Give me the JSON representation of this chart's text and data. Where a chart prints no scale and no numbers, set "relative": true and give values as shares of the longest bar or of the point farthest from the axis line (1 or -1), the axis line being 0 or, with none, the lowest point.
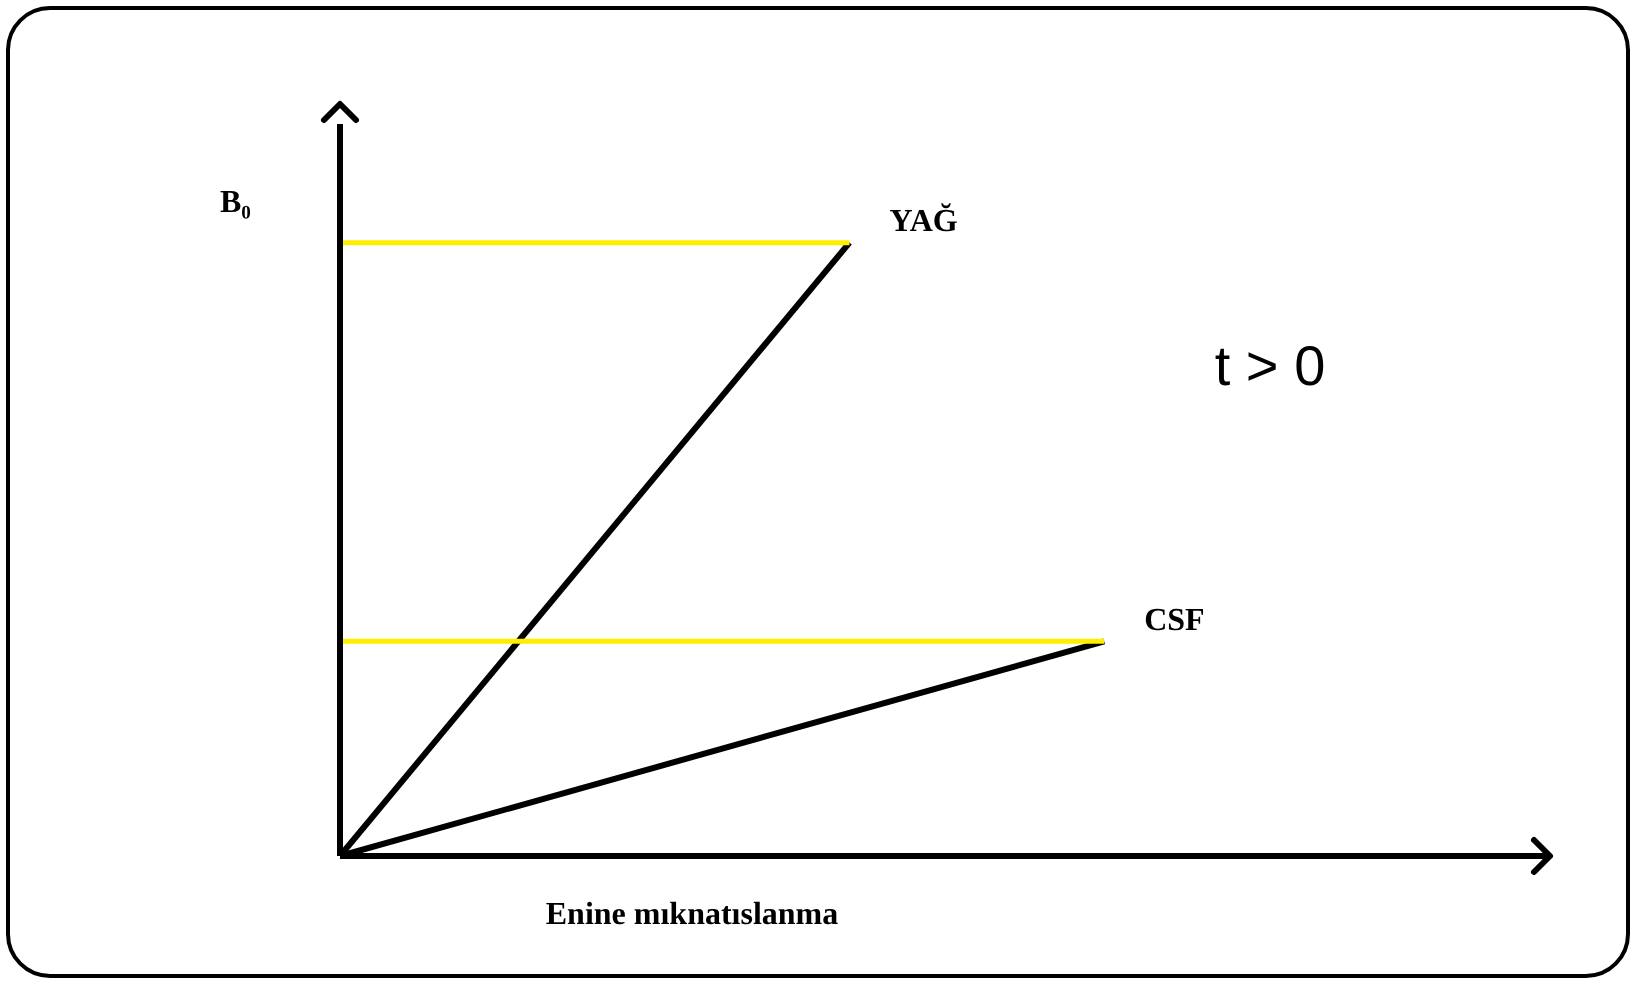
{
  "chart_data": {
    "type": "line",
    "relative": true,
    "xlabel": "Enine mıknatıslanma",
    "ylabel": "B₀",
    "annotations": [
      "t > 0"
    ],
    "legend": false,
    "marker": "none",
    "line_style": "solid",
    "categories": [
      null,
      null,
      null,
      null,
      null,
      null,
      null,
      null,
      null,
      null,
      null,
      null,
      null,
      null,
      null,
      null,
      null,
      null,
      null,
      null
    ],
    "series": [
      {
        "name": "YAĞ",
        "color": "#000000",
        "values": [
          0,
          null,
          null,
          null,
          null,
          null,
          null,
          null,
          1,
          null,
          null,
          null,
          null,
          null,
          null,
          null,
          null,
          null,
          null,
          null
        ]
      },
      {
        "name": "CSF",
        "color": "#000000",
        "values": [
          0,
          null,
          null,
          null,
          null,
          null,
          null,
          null,
          null,
          null,
          null,
          null,
          0.35,
          null,
          null,
          null,
          null,
          null,
          null,
          null
        ]
      },
      {
        "color": "#ffee00",
        "values": [
          1,
          null,
          null,
          null,
          null,
          null,
          null,
          null,
          1,
          null,
          null,
          null,
          null,
          null,
          null,
          null,
          null,
          null,
          null,
          null
        ]
      },
      {
        "color": "#ffee00",
        "values": [
          0.35,
          null,
          null,
          null,
          null,
          null,
          null,
          null,
          null,
          null,
          null,
          null,
          0.35,
          null,
          null,
          null,
          null,
          null,
          null,
          null
        ]
      }
    ]
  }
}
